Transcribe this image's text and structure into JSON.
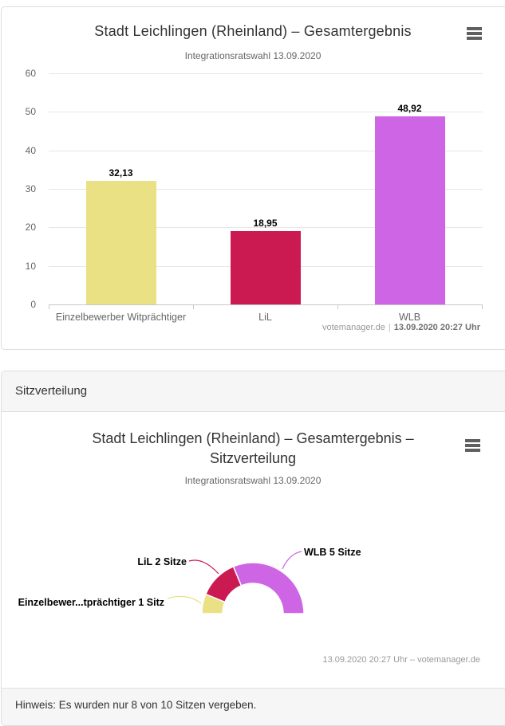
{
  "results_chart": {
    "title": "Stadt Leichlingen (Rheinland) – Gesamtergebnis",
    "subtitle": "Integrationsratswahl 13.09.2020",
    "menu_icon": "hamburger-menu-icon",
    "credits_source": "votemanager.de",
    "credits_separator": "|",
    "credits_timestamp": "13.09.2020 20:27 Uhr"
  },
  "seats_section": {
    "header": "Sitzverteilung",
    "title_line1": "Stadt Leichlingen (Rheinland) – Gesamtergebnis –",
    "title_line2": "Sitzverteilung",
    "subtitle": "Integrationsratswahl 13.09.2020",
    "menu_icon": "hamburger-menu-icon",
    "credits": "13.09.2020 20:27 Uhr – votemanager.de",
    "footer_note": "Hinweis: Es wurden nur 8 von 10 Sitzen vergeben."
  },
  "chart_data": [
    {
      "type": "bar",
      "title": "Stadt Leichlingen (Rheinland) – Gesamtergebnis",
      "subtitle": "Integrationsratswahl 13.09.2020",
      "categories": [
        "Einzelbewerber Witprächtiger",
        "LiL",
        "WLB"
      ],
      "values": [
        32.13,
        18.95,
        48.92
      ],
      "value_labels": [
        "32,13",
        "18,95",
        "48,92"
      ],
      "colors": [
        "#e9e183",
        "#cb1a52",
        "#cd65e4"
      ],
      "xlabel": "",
      "ylabel": "",
      "ylim": [
        0,
        60
      ],
      "yticks": [
        0,
        10,
        20,
        30,
        40,
        50,
        60
      ],
      "grid": true,
      "legend": false,
      "credits": "votemanager.de | 13.09.2020 20:27 Uhr"
    },
    {
      "type": "pie",
      "variant": "semi-donut",
      "title": "Stadt Leichlingen (Rheinland) – Gesamtergebnis – Sitzverteilung",
      "subtitle": "Integrationsratswahl 13.09.2020",
      "slices": [
        {
          "label": "Einzelbewer...tprächtiger 1 Sitz",
          "value": 1,
          "color": "#e9e183"
        },
        {
          "label": "LiL 2 Sitze",
          "value": 2,
          "color": "#cb1a52"
        },
        {
          "label": "WLB 5 Sitze",
          "value": 5,
          "color": "#cd65e4"
        }
      ],
      "total_seats_shown": 8,
      "legend": false,
      "credits": "13.09.2020 20:27 Uhr – votemanager.de",
      "note": "Hinweis: Es wurden nur 8 von 10 Sitzen vergeben."
    }
  ]
}
